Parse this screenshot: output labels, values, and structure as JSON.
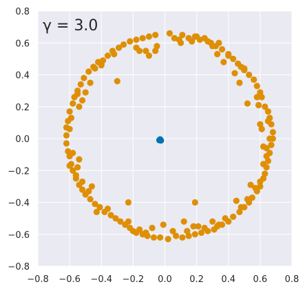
{
  "chart_data": {
    "type": "scatter",
    "annotation": "γ = 3.0",
    "xlim": [
      -0.8,
      0.8
    ],
    "ylim": [
      -0.8,
      0.8
    ],
    "xticks": [
      "−0.8",
      "−0.6",
      "−0.4",
      "−0.2",
      "0.0",
      "0.2",
      "0.4",
      "0.6",
      "0.8"
    ],
    "yticks": [
      "0.8",
      "0.6",
      "0.4",
      "0.2",
      "0.0",
      "−0.2",
      "−0.4",
      "−0.6",
      "−0.8"
    ],
    "grid": true,
    "background": "#EAEAF2",
    "series": [
      {
        "color": "#DE8F05",
        "points": [
          [
            0.03,
            0.66
          ],
          [
            0.11,
            0.65
          ],
          [
            0.15,
            0.63
          ],
          [
            0.19,
            0.64
          ],
          [
            0.22,
            0.62
          ],
          [
            0.25,
            0.63
          ],
          [
            0.29,
            0.6
          ],
          [
            0.32,
            0.58
          ],
          [
            0.34,
            0.6
          ],
          [
            0.36,
            0.56
          ],
          [
            0.4,
            0.53
          ],
          [
            0.43,
            0.5
          ],
          [
            0.46,
            0.47
          ],
          [
            0.48,
            0.45
          ],
          [
            0.5,
            0.43
          ],
          [
            0.53,
            0.4
          ],
          [
            0.56,
            0.37
          ],
          [
            0.58,
            0.33
          ],
          [
            0.6,
            0.29
          ],
          [
            0.61,
            0.26
          ],
          [
            0.63,
            0.2
          ],
          [
            0.65,
            0.17
          ],
          [
            0.66,
            0.13
          ],
          [
            0.67,
            0.09
          ],
          [
            0.68,
            0.04
          ],
          [
            0.68,
            0.0
          ],
          [
            0.67,
            -0.04
          ],
          [
            0.66,
            -0.09
          ],
          [
            0.65,
            -0.14
          ],
          [
            0.64,
            -0.18
          ],
          [
            0.63,
            -0.22
          ],
          [
            0.62,
            -0.25
          ],
          [
            0.6,
            -0.3
          ],
          [
            0.58,
            -0.33
          ],
          [
            0.55,
            -0.37
          ],
          [
            0.53,
            -0.4
          ],
          [
            0.5,
            -0.43
          ],
          [
            0.47,
            -0.46
          ],
          [
            0.43,
            -0.49
          ],
          [
            0.4,
            -0.52
          ],
          [
            0.36,
            -0.54
          ],
          [
            0.33,
            -0.55
          ],
          [
            0.31,
            -0.57
          ],
          [
            0.27,
            -0.58
          ],
          [
            0.23,
            -0.59
          ],
          [
            0.19,
            -0.6
          ],
          [
            0.15,
            -0.61
          ],
          [
            0.11,
            -0.62
          ],
          [
            0.07,
            -0.61
          ],
          [
            0.02,
            -0.63
          ],
          [
            -0.03,
            -0.62
          ],
          [
            -0.07,
            -0.62
          ],
          [
            -0.11,
            -0.61
          ],
          [
            -0.14,
            -0.6
          ],
          [
            -0.18,
            -0.59
          ],
          [
            -0.22,
            -0.56
          ],
          [
            -0.25,
            -0.54
          ],
          [
            -0.28,
            -0.52
          ],
          [
            -0.31,
            -0.5
          ],
          [
            -0.34,
            -0.48
          ],
          [
            -0.38,
            -0.46
          ],
          [
            -0.41,
            -0.43
          ],
          [
            -0.44,
            -0.41
          ],
          [
            -0.47,
            -0.38
          ],
          [
            -0.5,
            -0.35
          ],
          [
            -0.52,
            -0.32
          ],
          [
            -0.54,
            -0.29
          ],
          [
            -0.56,
            -0.25
          ],
          [
            -0.58,
            -0.2
          ],
          [
            -0.59,
            -0.16
          ],
          [
            -0.6,
            -0.11
          ],
          [
            -0.61,
            -0.08
          ],
          [
            -0.62,
            -0.03
          ],
          [
            -0.62,
            0.02
          ],
          [
            -0.62,
            0.07
          ],
          [
            -0.61,
            0.11
          ],
          [
            -0.6,
            0.17
          ],
          [
            -0.58,
            0.22
          ],
          [
            -0.57,
            0.26
          ],
          [
            -0.55,
            0.3
          ],
          [
            -0.53,
            0.34
          ],
          [
            -0.51,
            0.38
          ],
          [
            -0.48,
            0.42
          ],
          [
            -0.45,
            0.45
          ],
          [
            -0.42,
            0.48
          ],
          [
            -0.39,
            0.49
          ],
          [
            -0.36,
            0.52
          ],
          [
            -0.33,
            0.55
          ],
          [
            -0.29,
            0.57
          ],
          [
            -0.26,
            0.59
          ],
          [
            -0.22,
            0.61
          ],
          [
            -0.18,
            0.62
          ],
          [
            -0.14,
            0.63
          ],
          [
            -0.1,
            0.64
          ],
          [
            -0.06,
            0.65
          ],
          [
            0.06,
            0.63
          ],
          [
            0.2,
            0.64
          ],
          [
            0.3,
            0.58
          ],
          [
            0.44,
            0.41
          ],
          [
            0.6,
            0.09
          ],
          [
            0.62,
            -0.05
          ],
          [
            0.57,
            -0.31
          ],
          [
            0.45,
            -0.39
          ],
          [
            0.3,
            -0.52
          ],
          [
            0.21,
            -0.55
          ],
          [
            0.12,
            -0.52
          ],
          [
            0.05,
            -0.58
          ],
          [
            -0.08,
            -0.56
          ],
          [
            -0.16,
            -0.57
          ],
          [
            -0.23,
            -0.52
          ],
          [
            -0.36,
            -0.44
          ],
          [
            -0.52,
            -0.27
          ],
          [
            -0.55,
            -0.18
          ],
          [
            -0.58,
            -0.09
          ],
          [
            -0.54,
            -0.13
          ],
          [
            -0.52,
            0.24
          ],
          [
            -0.5,
            0.29
          ],
          [
            -0.54,
            0.2
          ],
          [
            -0.4,
            0.46
          ],
          [
            -0.32,
            0.53
          ],
          [
            -0.3,
            0.36
          ],
          [
            -0.18,
            0.57
          ],
          [
            -0.12,
            0.55
          ],
          [
            -0.1,
            0.52
          ],
          [
            -0.05,
            0.58
          ],
          [
            0.1,
            0.6
          ],
          [
            0.17,
            0.61
          ],
          [
            0.33,
            0.53
          ],
          [
            0.37,
            0.48
          ],
          [
            0.47,
            0.35
          ],
          [
            0.52,
            0.22
          ],
          [
            0.59,
            0.21
          ],
          [
            0.61,
            0.06
          ],
          [
            0.64,
            -0.06
          ],
          [
            0.64,
            -0.11
          ],
          [
            0.62,
            -0.16
          ],
          [
            0.54,
            -0.29
          ],
          [
            0.48,
            -0.43
          ],
          [
            0.38,
            -0.5
          ],
          [
            0.18,
            -0.55
          ],
          [
            0.19,
            -0.4
          ],
          [
            -0.23,
            -0.4
          ],
          [
            -0.43,
            -0.46
          ],
          [
            -0.48,
            -0.33
          ],
          [
            -0.46,
            -0.3
          ],
          [
            -0.56,
            -0.23
          ],
          [
            -0.6,
            -0.17
          ],
          [
            -0.6,
            0.06
          ],
          [
            -0.59,
            0.13
          ],
          [
            -0.55,
            0.28
          ],
          [
            -0.47,
            0.35
          ],
          [
            -0.44,
            0.44
          ],
          [
            -0.4,
            0.47
          ],
          [
            -0.16,
            0.55
          ],
          [
            -0.06,
            0.55
          ],
          [
            0.09,
            0.62
          ],
          [
            0.27,
            0.61
          ],
          [
            0.4,
            0.52
          ],
          [
            0.5,
            0.44
          ],
          [
            0.58,
            0.26
          ],
          [
            0.65,
            0.11
          ],
          [
            0.66,
            0.0
          ],
          [
            0.6,
            -0.27
          ],
          [
            0.52,
            -0.38
          ],
          [
            0.34,
            -0.54
          ],
          [
            0.25,
            -0.56
          ],
          [
            0.14,
            -0.58
          ],
          [
            -0.01,
            -0.54
          ],
          [
            -0.12,
            -0.59
          ],
          [
            -0.2,
            -0.58
          ]
        ]
      },
      {
        "color": "#0173B2",
        "points": [
          [
            -0.035,
            -0.01
          ],
          [
            -0.03,
            -0.005
          ],
          [
            -0.025,
            -0.012
          ]
        ]
      }
    ]
  }
}
